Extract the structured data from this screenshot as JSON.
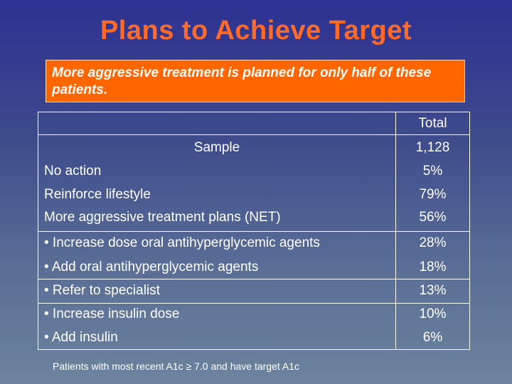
{
  "title": "Plans to Achieve Target",
  "callout": "More aggressive treatment is planned for only half of these patients.",
  "table": {
    "column_header": "Total",
    "sample": {
      "label": "Sample",
      "value": "1,128"
    },
    "rows": [
      {
        "label": "No action",
        "value": "5%"
      },
      {
        "label": "Reinforce lifestyle",
        "value": "79%"
      },
      {
        "label": "More aggressive treatment plans (NET)",
        "value": "56%"
      },
      {
        "label": "• Increase dose oral antihyperglycemic agents",
        "value": "28%"
      },
      {
        "label": "• Add oral antihyperglycemic agents",
        "value": "18%"
      },
      {
        "label": "• Refer to specialist",
        "value": "13%"
      },
      {
        "label": "• Increase insulin dose",
        "value": "10%"
      },
      {
        "label": "• Add insulin",
        "value": "6%"
      }
    ]
  },
  "footnote": "Patients with most recent A1c ≥ 7.0 and have target A1c",
  "colors": {
    "title": "#ff6a2b",
    "callout_bg": "#ff6600",
    "background_top": "#2e3192",
    "background_bottom": "#6d839e",
    "text": "#ffffff"
  }
}
